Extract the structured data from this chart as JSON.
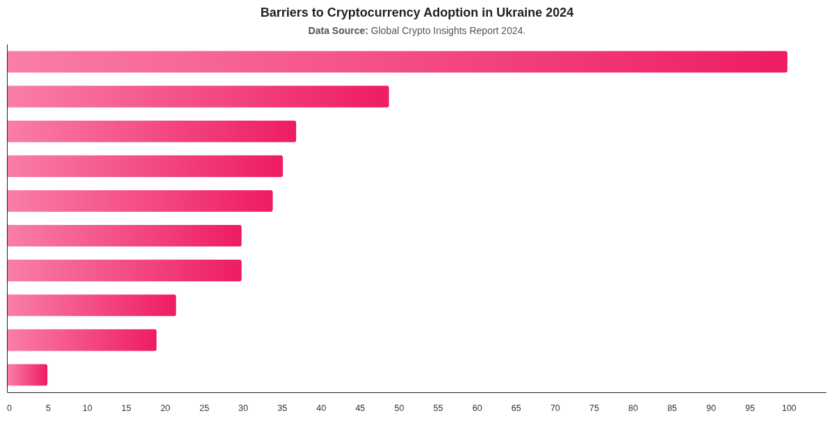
{
  "chart_data": {
    "type": "bar",
    "orientation": "horizontal",
    "title": "Barriers to Cryptocurrency Adoption in Ukraine 2024",
    "subtitle": "Data Source: Global Crypto Insights Report 2024.",
    "categories": [
      null,
      null,
      null,
      null,
      null,
      null,
      null,
      null,
      null,
      null
    ],
    "values": [
      100,
      48.9,
      37,
      35.3,
      34,
      30,
      30,
      21.6,
      19.1,
      5.1
    ],
    "color": "#f74784",
    "xlim": [
      0,
      105
    ],
    "xticks": [
      0,
      5,
      10,
      15,
      20,
      25,
      30,
      35,
      40,
      45,
      50,
      55,
      60,
      65,
      70,
      75,
      80,
      85,
      90,
      95,
      100
    ],
    "tick_labels": "x"
  }
}
